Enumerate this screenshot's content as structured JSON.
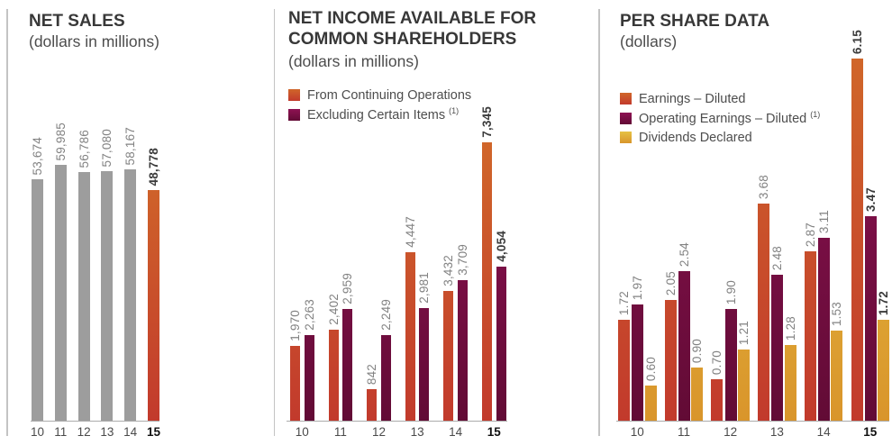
{
  "page_bg": "#FFFFFF",
  "palette": {
    "gray": {
      "top": "#9D9D9D",
      "bottom": "#9D9D9D"
    },
    "accent": {
      "top": "#D0662A",
      "bottom": "#C23A2C"
    },
    "maroon": {
      "top": "#8E1253",
      "bottom": "#620B35"
    },
    "gold": {
      "top": "#E6C144",
      "bottom": "#D9952B"
    }
  },
  "chart_data": [
    {
      "type": "bar",
      "title": "NET SALES",
      "subtitle": "(dollars in millions)",
      "categories": [
        "10",
        "11",
        "12",
        "13",
        "14",
        "15"
      ],
      "bold_category": "15",
      "legend": [],
      "series": [
        {
          "name": "net-sales",
          "color_key": "gray",
          "bar_color_keys": [
            "gray",
            "gray",
            "gray",
            "gray",
            "gray",
            "accent"
          ],
          "values": [
            53674,
            59985,
            56786,
            57080,
            58167,
            48778
          ],
          "labels": [
            "53,674",
            "59,985",
            "56,786",
            "57,080",
            "58,167",
            "48,778"
          ]
        }
      ]
    },
    {
      "type": "bar",
      "title": "NET INCOME AVAILABLE FOR COMMON SHAREHOLDERS",
      "subtitle": "(dollars in millions)",
      "categories": [
        "10",
        "11",
        "12",
        "13",
        "14",
        "15"
      ],
      "bold_category": "15",
      "legend": [
        {
          "label": "From Continuing Operations",
          "sup": "",
          "color_key": "accent"
        },
        {
          "label": "Excluding Certain Items",
          "sup": "(1)",
          "color_key": "maroon"
        }
      ],
      "series": [
        {
          "name": "from-continuing-operations",
          "color_key": "accent",
          "values": [
            1970,
            2402,
            842,
            4447,
            3432,
            7345
          ],
          "labels": [
            "1,970",
            "2,402",
            "842",
            "4,447",
            "3,432",
            "7,345"
          ]
        },
        {
          "name": "excluding-certain-items",
          "color_key": "maroon",
          "values": [
            2263,
            2959,
            2249,
            2981,
            3709,
            4054
          ],
          "labels": [
            "2,263",
            "2,959",
            "2,249",
            "2,981",
            "3,709",
            "4,054"
          ]
        }
      ]
    },
    {
      "type": "bar",
      "title": "PER SHARE DATA",
      "subtitle": "(dollars)",
      "categories": [
        "10",
        "11",
        "12",
        "13",
        "14",
        "15"
      ],
      "bold_category": "15",
      "legend": [
        {
          "label": "Earnings – Diluted",
          "sup": "",
          "color_key": "accent"
        },
        {
          "label": "Operating Earnings – Diluted",
          "sup": "(1)",
          "color_key": "maroon"
        },
        {
          "label": "Dividends Declared",
          "sup": "",
          "color_key": "gold"
        }
      ],
      "series": [
        {
          "name": "earnings-diluted",
          "color_key": "accent",
          "values": [
            1.72,
            2.05,
            0.7,
            3.68,
            2.87,
            6.15
          ],
          "labels": [
            "1.72",
            "2.05",
            "0.70",
            "3.68",
            "2.87",
            "6.15"
          ]
        },
        {
          "name": "operating-earnings-diluted",
          "color_key": "maroon",
          "values": [
            1.97,
            2.54,
            1.9,
            2.48,
            3.11,
            3.47
          ],
          "labels": [
            "1.97",
            "2.54",
            "1.90",
            "2.48",
            "3.11",
            "3.47"
          ]
        },
        {
          "name": "dividends-declared",
          "color_key": "gold",
          "values": [
            0.6,
            0.9,
            1.21,
            1.28,
            1.53,
            1.72
          ],
          "labels": [
            "0.60",
            "0.90",
            "1.21",
            "1.28",
            "1.53",
            "1.72"
          ]
        }
      ]
    }
  ]
}
